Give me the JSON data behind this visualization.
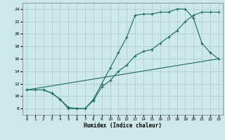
{
  "xlabel": "Humidex (Indice chaleur)",
  "bg_color": "#cce8e8",
  "grid_color": "#aacccc",
  "line_color": "#1a6b5a",
  "line1_x": [
    0,
    1,
    2,
    3,
    4,
    5,
    6,
    7,
    8,
    9,
    10,
    11,
    12,
    13,
    14,
    15,
    16,
    17,
    18,
    19,
    20,
    21,
    22,
    23
  ],
  "line1_y": [
    11,
    11,
    11,
    10.5,
    9.5,
    8.0,
    8.0,
    8.0,
    9.5,
    12.0,
    14.5,
    17.0,
    19.5,
    23.0,
    23.2,
    23.2,
    23.5,
    23.5,
    24.0,
    24.0,
    22.5,
    18.5,
    17.0,
    16.0
  ],
  "line2_x": [
    0,
    1,
    2,
    3,
    4,
    5,
    6,
    7,
    8,
    9,
    10,
    11,
    12,
    13,
    14,
    15,
    16,
    17,
    18,
    19,
    20,
    21,
    22,
    23
  ],
  "line2_y": [
    11,
    11,
    11,
    10.5,
    9.5,
    8.2,
    8.0,
    8.0,
    9.3,
    11.5,
    12.5,
    14.0,
    15.0,
    16.5,
    17.2,
    17.5,
    18.5,
    19.5,
    20.5,
    22.0,
    23.0,
    23.5,
    23.5,
    23.5
  ],
  "line3_x": [
    0,
    23
  ],
  "line3_y": [
    11,
    16
  ],
  "xlim": [
    -0.5,
    23.5
  ],
  "ylim": [
    7.0,
    25.0
  ],
  "yticks": [
    8,
    10,
    12,
    14,
    16,
    18,
    20,
    22,
    24
  ],
  "xticks": [
    0,
    1,
    2,
    3,
    4,
    5,
    6,
    7,
    8,
    9,
    10,
    11,
    12,
    13,
    14,
    15,
    16,
    17,
    18,
    19,
    20,
    21,
    22,
    23
  ],
  "xticklabels": [
    "0",
    "1",
    "2",
    "3",
    "4",
    "5",
    "6",
    "7",
    "8",
    "9",
    "10",
    "11",
    "12",
    "13",
    "14",
    "15",
    "16",
    "17",
    "18",
    "19",
    "20",
    "21",
    "22",
    "23"
  ]
}
